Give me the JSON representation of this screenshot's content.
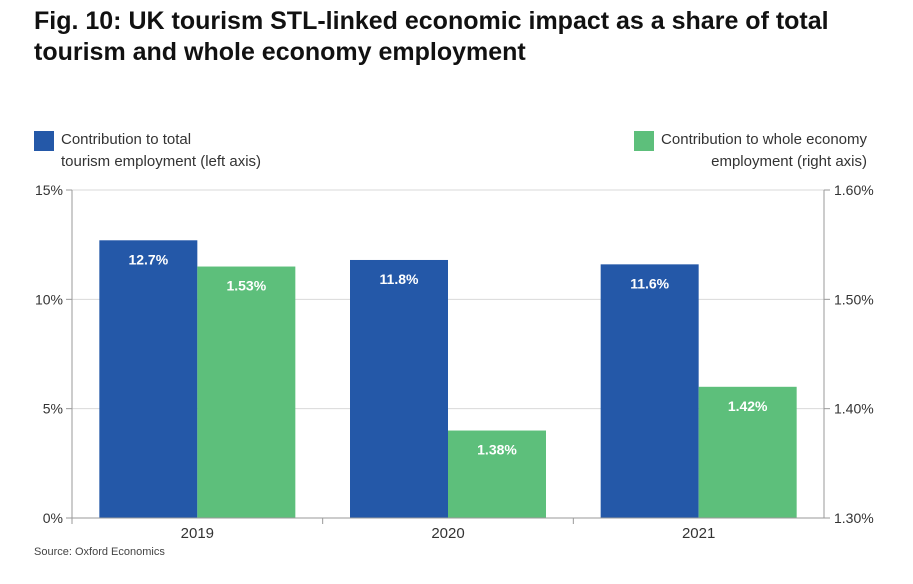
{
  "title": "Fig. 10: UK tourism STL-linked economic impact as a share of total tourism and whole economy employment",
  "source": "Source: Oxford Economics",
  "legend": {
    "left": "Contribution to total\ntourism employment (left axis)",
    "right": "Contribution to whole economy\nemployment (right axis)"
  },
  "colors": {
    "blue": "#2458a8",
    "green": "#5dbf7b",
    "axis": "#9a9a9a",
    "grid": "#d9d9d9"
  },
  "chart_data": {
    "type": "bar",
    "categories": [
      "2019",
      "2020",
      "2021"
    ],
    "series": [
      {
        "name": "Contribution to total tourism employment (left axis)",
        "axis": "left",
        "values": [
          12.7,
          11.8,
          11.6
        ],
        "labels": [
          "12.7%",
          "11.8%",
          "11.6%"
        ]
      },
      {
        "name": "Contribution to whole economy employment (right axis)",
        "axis": "right",
        "values": [
          1.53,
          1.38,
          1.42
        ],
        "labels": [
          "1.53%",
          "1.38%",
          "1.42%"
        ]
      }
    ],
    "left_axis": {
      "ylim": [
        0,
        15
      ],
      "ticks": [
        0,
        5,
        10,
        15
      ],
      "tick_labels": [
        "0%",
        "5%",
        "10%",
        "15%"
      ]
    },
    "right_axis": {
      "ylim": [
        1.3,
        1.6
      ],
      "ticks": [
        1.3,
        1.4,
        1.5,
        1.6
      ],
      "tick_labels": [
        "1.30%",
        "1.40%",
        "1.50%",
        "1.60%"
      ]
    },
    "grid": true,
    "legend_position": "top"
  }
}
